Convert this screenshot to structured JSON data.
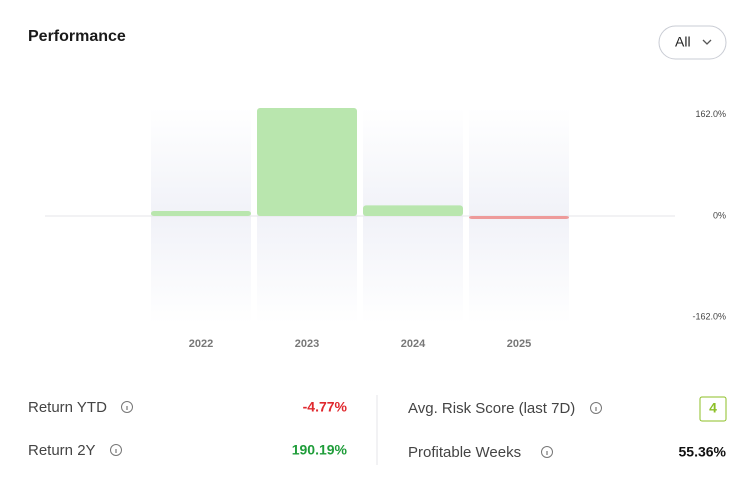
{
  "title": "Performance",
  "filter": "All",
  "chart_data": {
    "type": "bar",
    "categories": [
      "2022",
      "2023",
      "2024",
      "2025"
    ],
    "values": [
      8,
      173,
      17,
      -4.77
    ],
    "positive_color": "#b9e6ae",
    "negative_color": "#ee9a9a",
    "ylim": [
      -173,
      173
    ],
    "yticks": [
      {
        "value": 162,
        "label": "162.0%"
      },
      {
        "value": 0,
        "label": "0%"
      },
      {
        "value": -162,
        "label": "-162.0%"
      }
    ]
  },
  "stats": [
    {
      "label": "Return YTD",
      "value": "-4.77%",
      "color": "#e0282e"
    },
    {
      "label": "Return 2Y",
      "value": "190.19%",
      "color": "#1f9d3a"
    },
    {
      "label": "Avg. Risk Score (last 7D)",
      "value": "4",
      "color": "#8cbf26"
    },
    {
      "label": "Profitable Weeks",
      "value": "55.36%",
      "color": "#111111"
    }
  ]
}
